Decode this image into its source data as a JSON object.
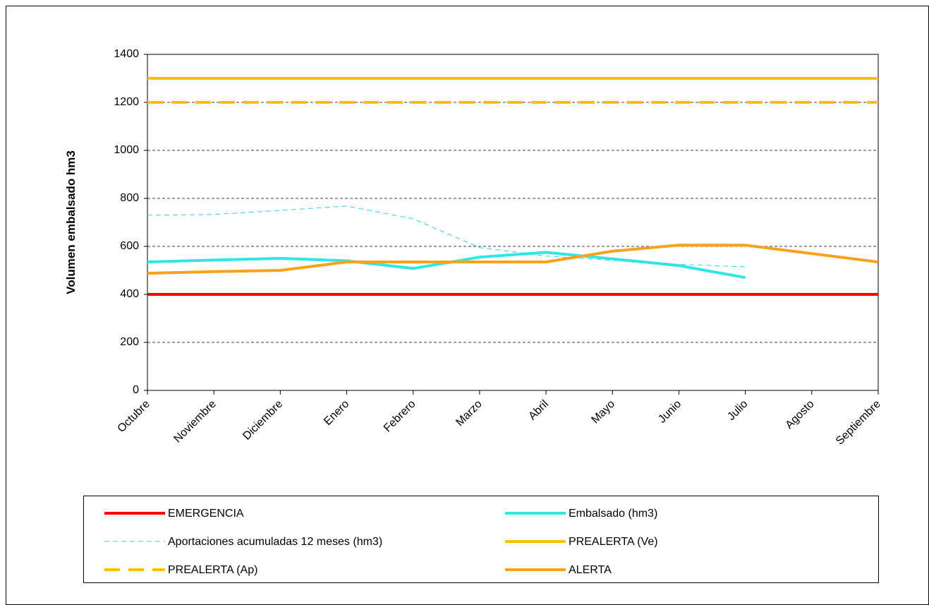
{
  "chart_data": {
    "type": "line",
    "y_label": "Volumen embalsado hm3",
    "categories": [
      "Octubre",
      "Noviembre",
      "Diciembre",
      "Enero",
      "Febrero",
      "Marzo",
      "Abril",
      "Mayo",
      "Junio",
      "Julio",
      "Agosto",
      "Septiembre"
    ],
    "series": [
      {
        "name": "EMERGENCIA",
        "color": "#ff0000",
        "linestyle": "solid",
        "values": [
          400,
          400,
          400,
          400,
          400,
          400,
          400,
          400,
          400,
          400,
          400,
          400
        ]
      },
      {
        "name": "Embalsado (hm3)",
        "color": "#33e6e6",
        "linestyle": "solid",
        "values": [
          535,
          543,
          550,
          540,
          508,
          555,
          575,
          548,
          520,
          470,
          null,
          null
        ]
      },
      {
        "name": "Aportaciones acumuladas 12 meses (hm3)",
        "color": "#33ccee",
        "linestyle": "dashed",
        "values": [
          730,
          733,
          750,
          768,
          715,
          595,
          560,
          542,
          525,
          515,
          null,
          null
        ]
      },
      {
        "name": "PREALERTA (Ve)",
        "color": "#ffc000",
        "linestyle": "solid",
        "values": [
          1300,
          1300,
          1300,
          1300,
          1300,
          1300,
          1300,
          1300,
          1300,
          1300,
          1300,
          1300
        ]
      },
      {
        "name": "PREALERTA (Ap)",
        "color": "#ffc000",
        "linestyle": "dashed",
        "values": [
          1200,
          1200,
          1200,
          1200,
          1200,
          1200,
          1200,
          1200,
          1200,
          1200,
          1200,
          1200
        ]
      },
      {
        "name": "ALERTA",
        "color": "#f7a21b",
        "linestyle": "solid",
        "values": [
          488,
          495,
          500,
          535,
          535,
          535,
          535,
          580,
          605,
          605,
          570,
          535
        ]
      }
    ],
    "ylim": [
      0,
      1400
    ],
    "yticks": [
      0,
      200,
      400,
      600,
      800,
      1000,
      1200,
      1400
    ],
    "grid": true
  }
}
